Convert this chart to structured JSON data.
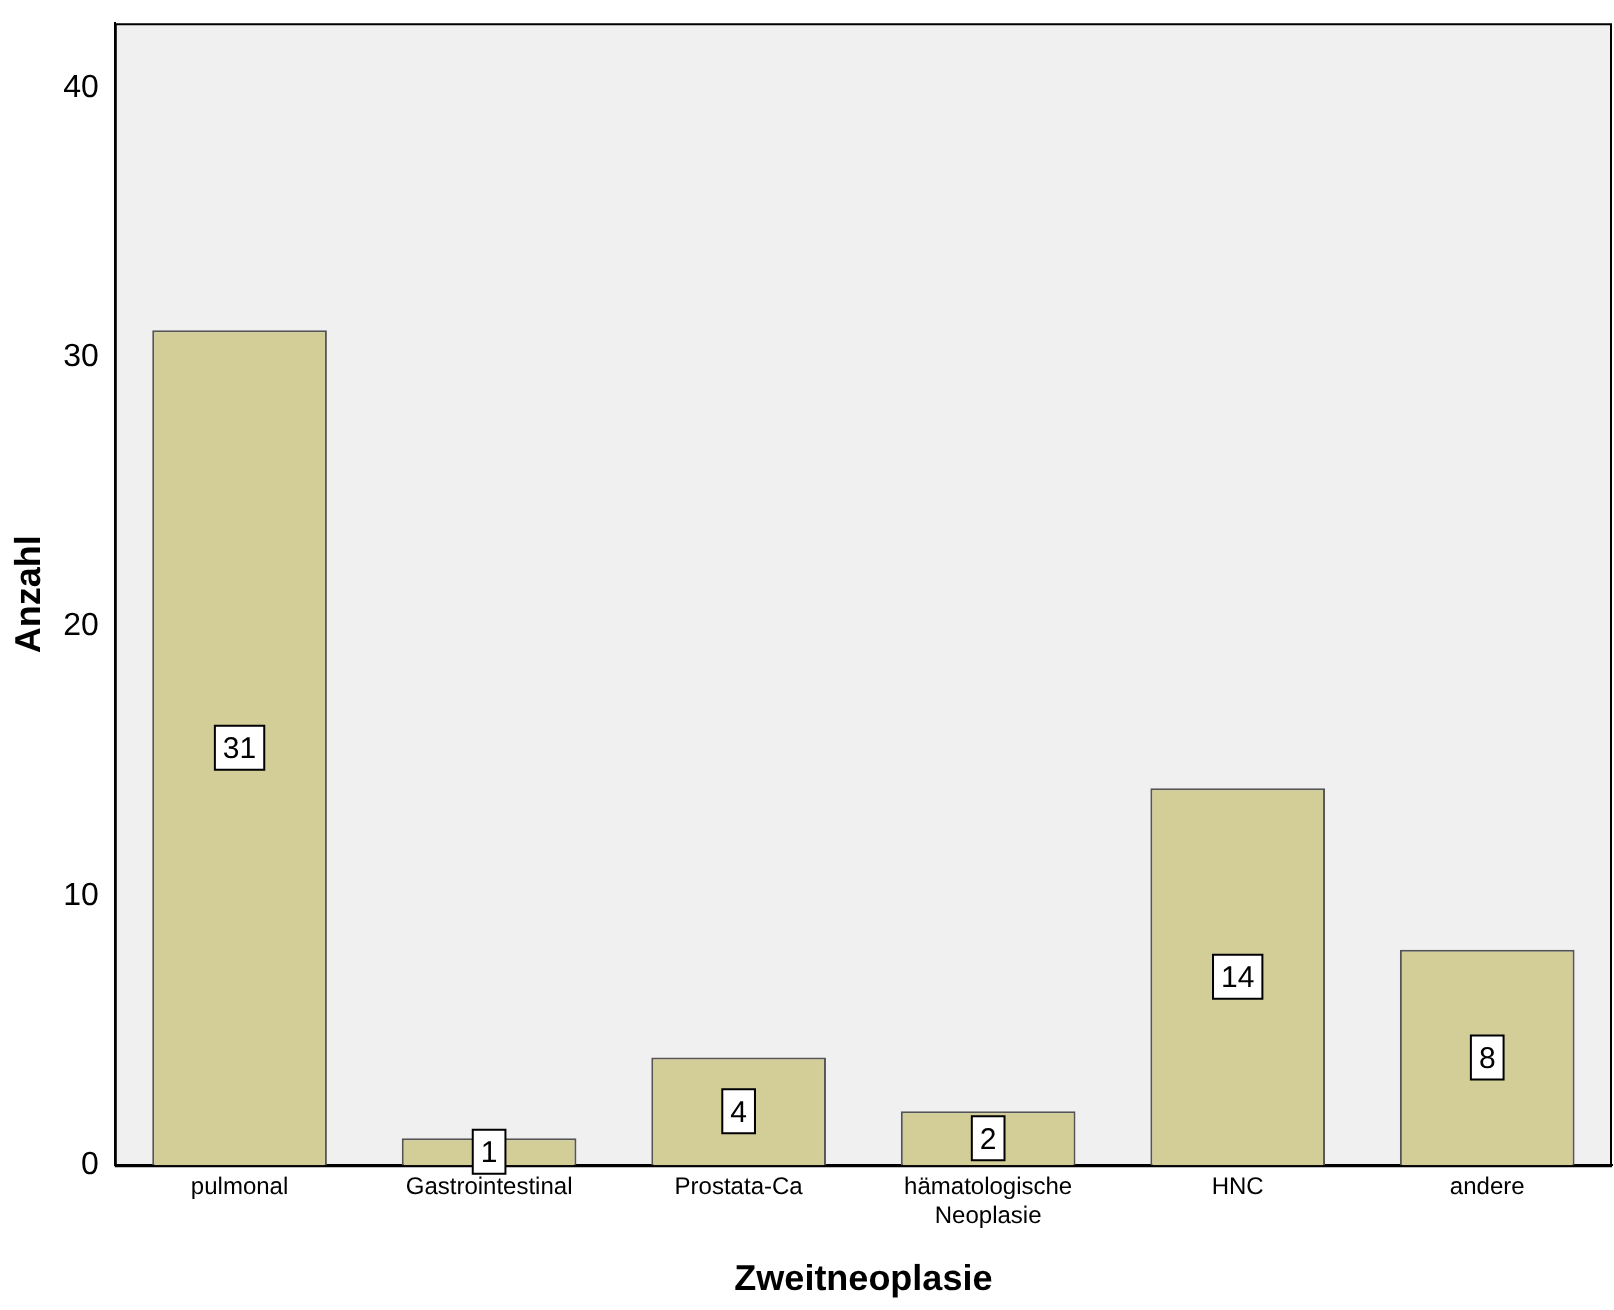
{
  "chart_data": {
    "type": "bar",
    "xlabel": "Zweitneoplasie",
    "ylabel": "Anzahl",
    "categories": [
      "pulmonal",
      "Gastrointestinal",
      "Prostata-Ca",
      "hämatologische Neoplasie",
      "HNC",
      "andere"
    ],
    "values": [
      31,
      1,
      4,
      2,
      14,
      8
    ],
    "color": "#d3ce97",
    "ylim": [
      0,
      42.4
    ],
    "yticks": [
      0,
      10,
      20,
      30,
      40
    ],
    "grid": false,
    "legend": false,
    "data_labels": true
  }
}
